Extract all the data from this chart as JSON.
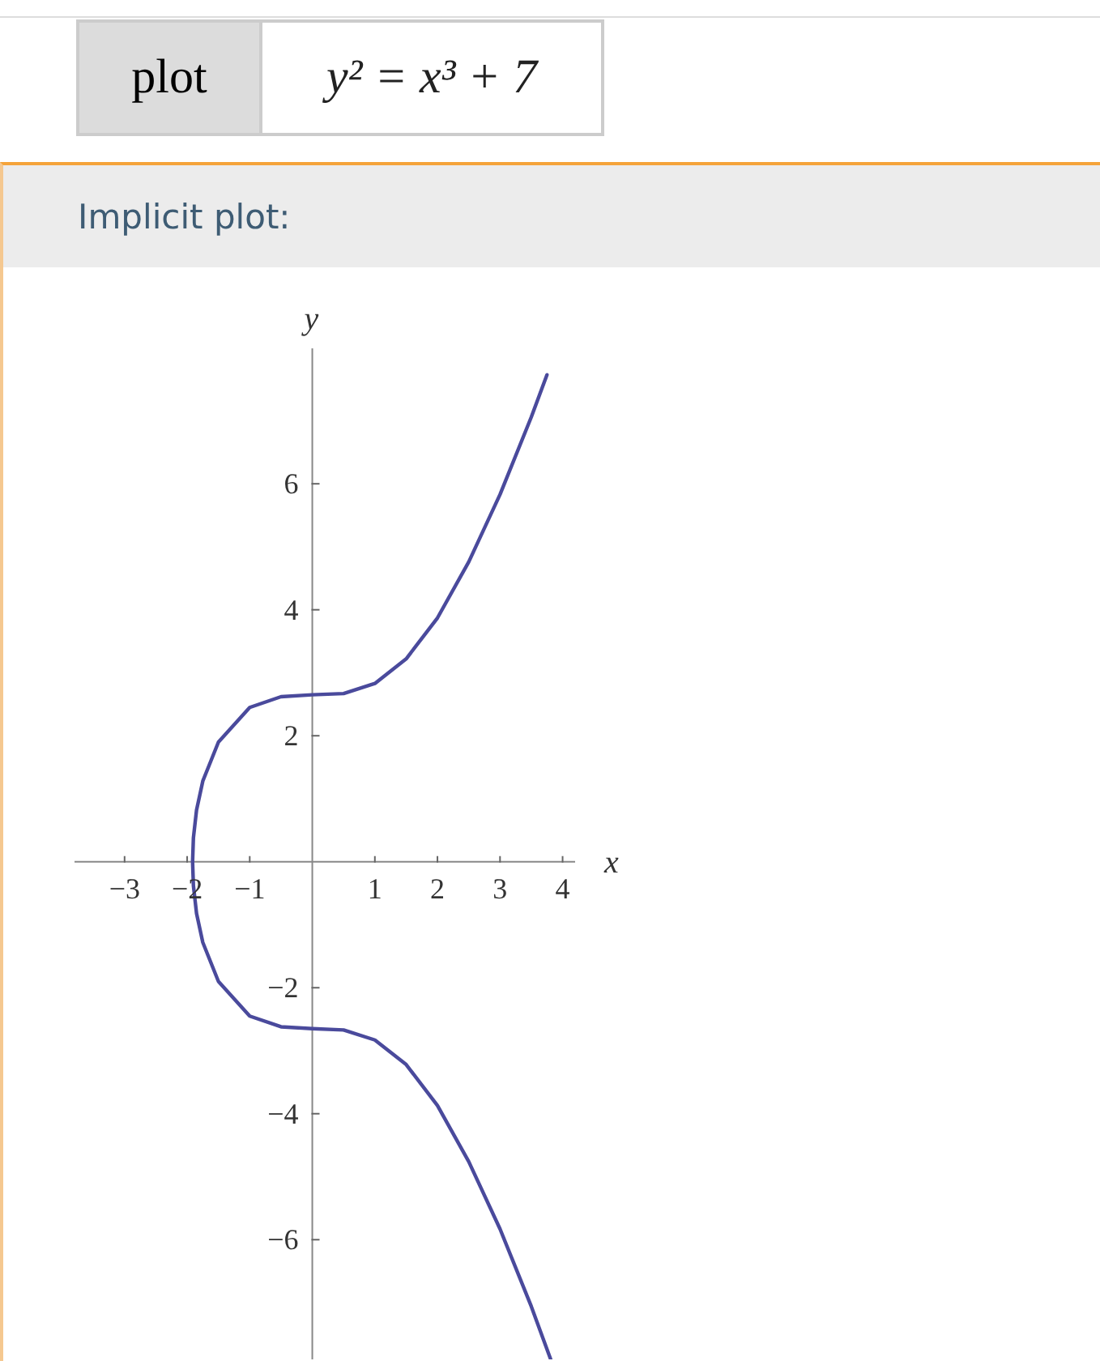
{
  "chart_data": {
    "type": "line",
    "title": "Implicit plot:",
    "annotations": [
      "plot",
      "y² = x³ + 7"
    ],
    "xlabel": "x",
    "ylabel": "y",
    "series": [
      {
        "color": "#4a4a9c",
        "x": [
          3.75,
          3.5,
          3,
          2.5,
          2,
          1.5,
          1,
          0.5,
          0,
          -0.5,
          -1,
          -1.5,
          -1.75,
          -1.85,
          -1.9,
          -1.913,
          -1.9,
          -1.85,
          -1.75,
          -1.5,
          -1,
          -0.5,
          0,
          0.5,
          1,
          1.5,
          2,
          2.5,
          3,
          3.5,
          3.81
        ],
        "values": [
          7.73,
          7.06,
          5.83,
          4.76,
          3.87,
          3.22,
          2.83,
          2.67,
          2.65,
          2.62,
          2.45,
          1.9,
          1.28,
          0.82,
          0.38,
          0,
          -0.38,
          -0.82,
          -1.28,
          -1.9,
          -2.45,
          -2.62,
          -2.65,
          -2.67,
          -2.83,
          -3.22,
          -3.87,
          -4.76,
          -5.83,
          -7.06,
          -7.9
        ]
      }
    ],
    "xlim": [
      -3.8,
      4.2
    ],
    "ylim": [
      -7.9,
      8.15
    ],
    "xticks": [
      {
        "value": -3,
        "label": "−3"
      },
      {
        "value": -2,
        "label": "−2"
      },
      {
        "value": -1,
        "label": "−1"
      },
      1,
      2,
      3,
      4
    ],
    "yticks": [
      {
        "value": -6,
        "label": "−6"
      },
      {
        "value": -4,
        "label": "−4"
      },
      {
        "value": -2,
        "label": "−2"
      },
      2,
      4,
      6
    ],
    "grid": false,
    "legend": false,
    "marker": "none",
    "line_style": "solid"
  }
}
